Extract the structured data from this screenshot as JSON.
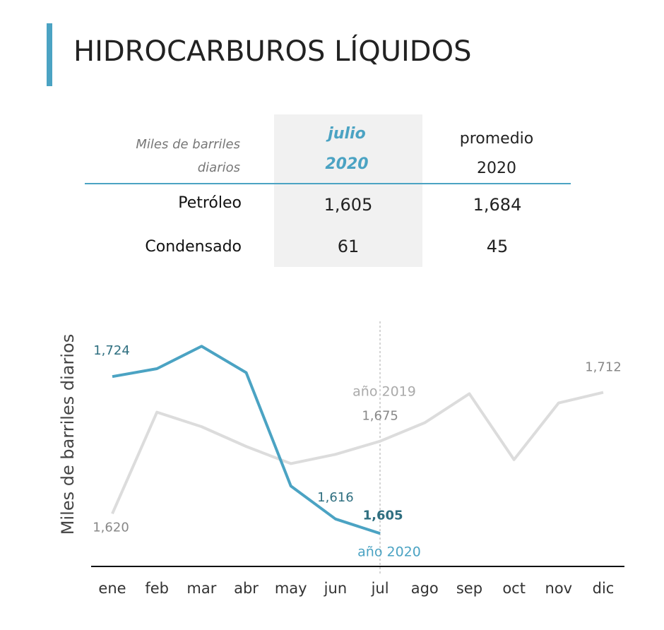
{
  "header": {
    "title": "HIDROCARBUROS LÍQUIDOS"
  },
  "table": {
    "unit": [
      "Miles de barriles",
      "diarios"
    ],
    "columns": [
      [
        "julio",
        "2020"
      ],
      [
        "promedio",
        "2020"
      ]
    ],
    "rows": [
      [
        "Petróleo",
        "1,605",
        "1,684"
      ],
      [
        "Condensado",
        "61",
        "45"
      ]
    ]
  },
  "chart_data": {
    "type": "line",
    "y_label": "Miles de barriles diarios",
    "categories": [
      "ene",
      "feb",
      "mar",
      "abr",
      "may",
      "jun",
      "jul",
      "ago",
      "sep",
      "oct",
      "nov",
      "dic"
    ],
    "ylim": [
      1580,
      1760
    ],
    "series": [
      {
        "name": "año 2019",
        "color": "#dcdcdc",
        "values": [
          1620,
          1697,
          1686,
          1671,
          1658,
          1665,
          1675,
          1689,
          1711,
          1661,
          1704,
          1712
        ],
        "value_labels": [
          "1,620",
          null,
          null,
          null,
          null,
          null,
          "1,675",
          null,
          null,
          null,
          null,
          "1,712"
        ]
      },
      {
        "name": "año 2020",
        "color": "#4ba3c3",
        "values": [
          1724,
          1730,
          1747,
          1727,
          1641,
          1616,
          1605,
          null,
          null,
          null,
          null,
          null
        ],
        "value_labels": [
          "1,724",
          null,
          null,
          null,
          null,
          "1,616",
          "1,605",
          null,
          null,
          null,
          null,
          null
        ]
      }
    ]
  }
}
